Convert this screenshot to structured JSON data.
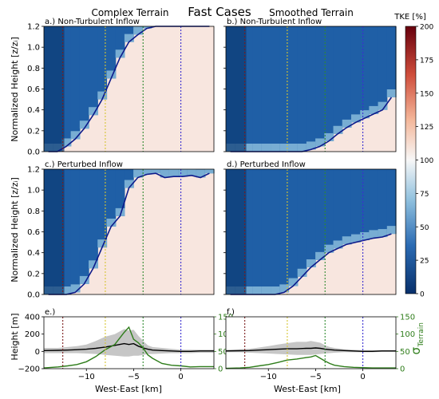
{
  "figure": {
    "title": "Fast Cases",
    "column_titles": [
      "Complex Terrain",
      "Smoothed Terrain"
    ]
  },
  "chart_data": [
    {
      "type": "heatmap",
      "title": "a.) Non-Turbulent Inflow",
      "ylabel": "Normalized Height [z/zᵢ]",
      "ylim": [
        0,
        1.2
      ],
      "yticks": [
        "0.0",
        "0.2",
        "0.4",
        "0.6",
        "0.8",
        "1.0",
        "1.2"
      ],
      "xlim": [
        -14.5,
        3.5
      ],
      "vlines": [
        {
          "x": -12.5,
          "color": "#7b1c1c"
        },
        {
          "x": -8,
          "color": "#d6c531"
        },
        {
          "x": -4,
          "color": "#2f8a2f"
        },
        {
          "x": 0,
          "color": "#3a2fd1"
        }
      ],
      "boundary_height": [
        0.0,
        0.0,
        0.05,
        0.12,
        0.22,
        0.35,
        0.5,
        0.7,
        0.9,
        1.05,
        1.12,
        1.18,
        1.2,
        1.2,
        1.2,
        1.2,
        1.2,
        1.2,
        1.2
      ]
    },
    {
      "type": "heatmap",
      "title": "b.) Non-Turbulent Inflow",
      "ylim": [
        0,
        1.2
      ],
      "xlim": [
        -14.5,
        3.5
      ],
      "vlines": [
        {
          "x": -12.5,
          "color": "#7b1c1c"
        },
        {
          "x": -8,
          "color": "#d6c531"
        },
        {
          "x": -4,
          "color": "#2f8a2f"
        },
        {
          "x": 0,
          "color": "#3a2fd1"
        }
      ],
      "boundary_height": [
        0,
        0,
        0,
        0,
        0,
        0,
        0,
        0,
        0,
        0.02,
        0.05,
        0.1,
        0.17,
        0.23,
        0.28,
        0.32,
        0.36,
        0.4,
        0.52
      ]
    },
    {
      "type": "heatmap",
      "title": "c.) Perturbed Inflow",
      "ylabel": "Normalized Height [z/zᵢ]",
      "ylim": [
        0,
        1.2
      ],
      "yticks": [
        "0.0",
        "0.2",
        "0.4",
        "0.6",
        "0.8",
        "1.0",
        "1.2"
      ],
      "xlim": [
        -14.5,
        3.5
      ],
      "vlines": [
        {
          "x": -12.5,
          "color": "#7b1c1c"
        },
        {
          "x": -8,
          "color": "#d6c531"
        },
        {
          "x": -4,
          "color": "#2f8a2f"
        },
        {
          "x": 0,
          "color": "#3a2fd1"
        }
      ],
      "boundary_height": [
        0,
        0,
        0,
        0.02,
        0.1,
        0.25,
        0.45,
        0.65,
        0.75,
        1.02,
        1.12,
        1.15,
        1.16,
        1.12,
        1.13,
        1.13,
        1.14,
        1.12,
        1.16
      ]
    },
    {
      "type": "heatmap",
      "title": "d.) Perturbed Inflow",
      "ylim": [
        0,
        1.2
      ],
      "xlim": [
        -14.5,
        3.5
      ],
      "vlines": [
        {
          "x": -12.5,
          "color": "#7b1c1c"
        },
        {
          "x": -8,
          "color": "#d6c531"
        },
        {
          "x": -4,
          "color": "#2f8a2f"
        },
        {
          "x": 0,
          "color": "#3a2fd1"
        }
      ],
      "boundary_height": [
        0,
        0,
        0,
        0,
        0,
        0,
        0.02,
        0.08,
        0.17,
        0.26,
        0.33,
        0.4,
        0.44,
        0.48,
        0.5,
        0.52,
        0.54,
        0.55,
        0.58
      ]
    },
    {
      "type": "line",
      "title": "e.)",
      "ylabel": "Height [m]",
      "y2label": "σ",
      "y2label_sub": "Terrain",
      "xlabel": "West-East [km]",
      "xlim": [
        -14.5,
        3.5
      ],
      "xticks": [
        "−10",
        "−5",
        "0"
      ],
      "ylim": [
        -200,
        400
      ],
      "yticks": [
        "−200",
        "0",
        "200",
        "400"
      ],
      "y2lim": [
        0,
        150
      ],
      "y2ticks": [
        "0",
        "50",
        "100",
        "150"
      ],
      "vlines": [
        {
          "x": -12.5,
          "color": "#7b1c1c"
        },
        {
          "x": -8,
          "color": "#d6c531"
        },
        {
          "x": -4,
          "color": "#2f8a2f"
        },
        {
          "x": 0,
          "color": "#3a2fd1"
        }
      ],
      "x": [
        -14.5,
        -13,
        -12,
        -11,
        -10,
        -9,
        -8,
        -7,
        -6,
        -5.5,
        -5,
        -4.5,
        -4,
        -3.5,
        -3,
        -2,
        -1,
        0,
        1,
        2,
        3.5
      ],
      "series": [
        {
          "color": "#000000",
          "axis": "left",
          "values": [
            10,
            12,
            15,
            20,
            25,
            35,
            50,
            70,
            90,
            80,
            90,
            60,
            40,
            25,
            15,
            10,
            5,
            0,
            0,
            5,
            5
          ]
        },
        {
          "color": "#999999",
          "axis": "left",
          "band": "upper",
          "values": [
            40,
            40,
            50,
            60,
            80,
            120,
            170,
            200,
            260,
            240,
            250,
            180,
            120,
            70,
            50,
            40,
            30,
            20,
            20,
            20,
            20
          ]
        },
        {
          "color": "#999999",
          "axis": "left",
          "band": "lower",
          "values": [
            -20,
            -20,
            -20,
            -20,
            -25,
            -30,
            -40,
            -50,
            -60,
            -60,
            -50,
            -50,
            -40,
            -30,
            -30,
            -25,
            -20,
            -20,
            -20,
            -15,
            -15
          ]
        },
        {
          "color": "#2e7d1a",
          "axis": "right",
          "values": [
            2,
            5,
            8,
            12,
            20,
            35,
            55,
            70,
            105,
            120,
            85,
            75,
            60,
            40,
            30,
            15,
            10,
            8,
            5,
            6,
            6
          ]
        }
      ]
    },
    {
      "type": "line",
      "title": "f.)",
      "xlabel": "West-East [km]",
      "xlim": [
        -14.5,
        3.5
      ],
      "xticks": [
        "−10",
        "−5",
        "0"
      ],
      "ylim": [
        -200,
        400
      ],
      "y2lim": [
        0,
        150
      ],
      "y2ticks": [
        "0",
        "50",
        "100",
        "150"
      ],
      "vlines": [
        {
          "x": -12.5,
          "color": "#7b1c1c"
        },
        {
          "x": -8,
          "color": "#d6c531"
        },
        {
          "x": -4,
          "color": "#2f8a2f"
        },
        {
          "x": 0,
          "color": "#3a2fd1"
        }
      ],
      "x": [
        -14.5,
        -13,
        -12,
        -11,
        -10,
        -9,
        -8,
        -7,
        -6,
        -5.5,
        -5,
        -4.5,
        -4,
        -3.5,
        -3,
        -2,
        -1,
        0,
        1,
        2,
        3.5
      ],
      "series": [
        {
          "color": "#000000",
          "axis": "left",
          "values": [
            5,
            8,
            10,
            15,
            20,
            25,
            30,
            30,
            35,
            35,
            40,
            35,
            25,
            20,
            15,
            10,
            5,
            0,
            0,
            5,
            5
          ]
        },
        {
          "color": "#999999",
          "axis": "left",
          "band": "upper",
          "values": [
            20,
            25,
            30,
            45,
            60,
            80,
            95,
            110,
            110,
            120,
            110,
            100,
            70,
            50,
            40,
            25,
            20,
            15,
            15,
            15,
            15
          ]
        },
        {
          "color": "#999999",
          "axis": "left",
          "band": "lower",
          "values": [
            -10,
            -10,
            -15,
            -20,
            -25,
            -30,
            -35,
            -40,
            -40,
            -40,
            -35,
            -30,
            -25,
            -20,
            -15,
            -10,
            -10,
            -10,
            -10,
            -5,
            -5
          ]
        },
        {
          "color": "#2e7d1a",
          "axis": "right",
          "values": [
            1,
            2,
            4,
            8,
            12,
            18,
            25,
            28,
            32,
            34,
            38,
            30,
            22,
            15,
            10,
            6,
            4,
            3,
            2,
            2,
            2
          ]
        }
      ]
    }
  ],
  "colorbar": {
    "label": "TKE [%]",
    "ticks": [
      "0",
      "25",
      "50",
      "75",
      "100",
      "125",
      "150",
      "175",
      "200"
    ],
    "range": [
      0,
      200
    ]
  }
}
